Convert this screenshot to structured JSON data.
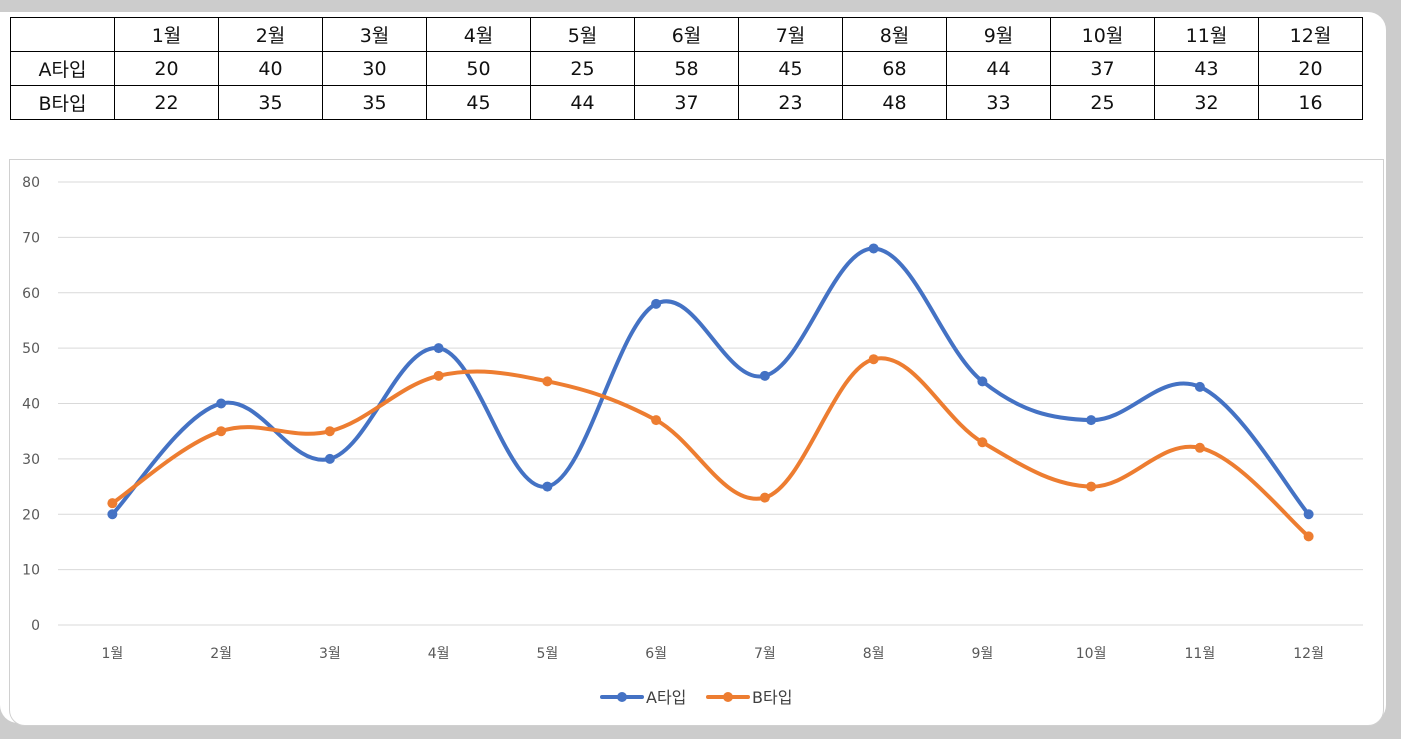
{
  "table": {
    "header": [
      "",
      "1월",
      "2월",
      "3월",
      "4월",
      "5월",
      "6월",
      "7월",
      "8월",
      "9월",
      "10월",
      "11월",
      "12월"
    ],
    "rows": [
      {
        "label": "A타입",
        "values": [
          "20",
          "40",
          "30",
          "50",
          "25",
          "58",
          "45",
          "68",
          "44",
          "37",
          "43",
          "20"
        ]
      },
      {
        "label": "B타입",
        "values": [
          "22",
          "35",
          "35",
          "45",
          "44",
          "37",
          "23",
          "48",
          "33",
          "25",
          "32",
          "16"
        ]
      }
    ]
  },
  "chart_data": {
    "type": "line",
    "smooth": true,
    "categories": [
      "1월",
      "2월",
      "3월",
      "4월",
      "5월",
      "6월",
      "7월",
      "8월",
      "9월",
      "10월",
      "11월",
      "12월"
    ],
    "series": [
      {
        "name": "A타입",
        "color": "#4472C4",
        "values": [
          20,
          40,
          30,
          50,
          25,
          58,
          45,
          68,
          44,
          37,
          43,
          20
        ]
      },
      {
        "name": "B타입",
        "color": "#ED7D31",
        "values": [
          22,
          35,
          35,
          45,
          44,
          37,
          23,
          48,
          33,
          25,
          32,
          16
        ]
      }
    ],
    "ylim": [
      0,
      80
    ],
    "yticks": [
      "0",
      "10",
      "20",
      "30",
      "40",
      "50",
      "60",
      "70",
      "80"
    ],
    "grid": true,
    "legend": "bottom",
    "title": "",
    "xlabel": "",
    "ylabel": ""
  }
}
